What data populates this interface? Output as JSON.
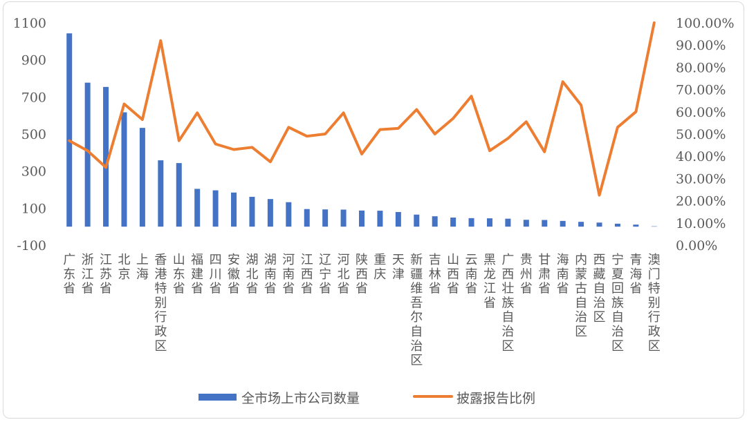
{
  "chart_data": {
    "type": "bar",
    "categories": [
      "广东省",
      "浙江省",
      "江苏省",
      "北京",
      "上海",
      "香港特别行政区",
      "山东省",
      "福建省",
      "四川省",
      "安徽省",
      "湖北省",
      "湖南省",
      "河南省",
      "江西省",
      "辽宁省",
      "河北省",
      "陕西省",
      "重庆",
      "天津",
      "新疆维吾尔自治区",
      "吉林省",
      "山西省",
      "云南省",
      "黑龙江省",
      "广西壮族自治区",
      "贵州省",
      "甘肃省",
      "海南省",
      "内蒙古自治区",
      "西藏自治区",
      "宁夏回族自治区",
      "青海省",
      "澳门特别行政区"
    ],
    "series": [
      {
        "name": "全市场上市公司数量",
        "type": "bar",
        "axis": "left",
        "color": "#4472C4",
        "values": [
          1043,
          777,
          754,
          617,
          533,
          358,
          343,
          204,
          196,
          184,
          161,
          149,
          132,
          95,
          93,
          92,
          87,
          86,
          79,
          65,
          56,
          49,
          46,
          45,
          43,
          37,
          36,
          31,
          26,
          22,
          16,
          11,
          2
        ]
      },
      {
        "name": "披露报告比例",
        "type": "line",
        "axis": "right",
        "color": "#ED7D31",
        "values": [
          0.47,
          0.425,
          0.35,
          0.635,
          0.565,
          0.92,
          0.47,
          0.595,
          0.455,
          0.43,
          0.44,
          0.375,
          0.53,
          0.49,
          0.5,
          0.595,
          0.41,
          0.52,
          0.525,
          0.61,
          0.5,
          0.57,
          0.67,
          0.425,
          0.48,
          0.555,
          0.42,
          0.735,
          0.63,
          0.225,
          0.53,
          0.6,
          1.0
        ]
      }
    ],
    "y_left": {
      "ylim": [
        -100,
        1100
      ],
      "ticks": [
        "1100",
        "900",
        "700",
        "500",
        "300",
        "100",
        "-100"
      ]
    },
    "y_right": {
      "ylim": [
        0,
        1
      ],
      "ticks": [
        "100.00%",
        "90.00%",
        "80.00%",
        "70.00%",
        "60.00%",
        "50.00%",
        "40.00%",
        "30.00%",
        "20.00%",
        "10.00%",
        "0.00%"
      ]
    },
    "legend": {
      "position": "bottom"
    },
    "grid": false,
    "title": ""
  }
}
